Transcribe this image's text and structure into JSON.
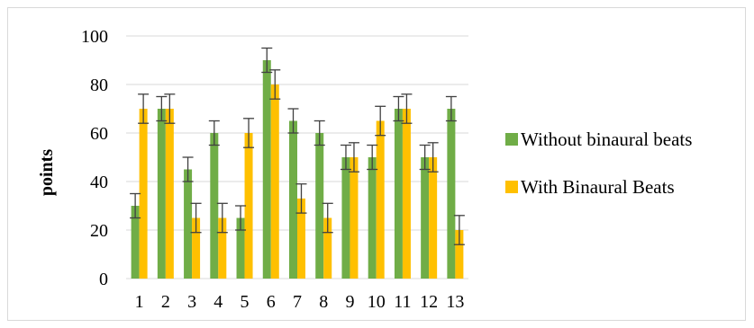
{
  "chart_data": {
    "type": "bar",
    "categories": [
      "1",
      "2",
      "3",
      "4",
      "5",
      "6",
      "7",
      "8",
      "9",
      "10",
      "11",
      "12",
      "13"
    ],
    "series": [
      {
        "name": "Without binaural beats",
        "color": "#70ad47",
        "values": [
          30,
          70,
          45,
          60,
          25,
          90,
          65,
          60,
          50,
          50,
          70,
          50,
          70
        ],
        "error": [
          5,
          5,
          5,
          5,
          5,
          5,
          5,
          5,
          5,
          5,
          5,
          5,
          5
        ]
      },
      {
        "name": "With Binaural Beats",
        "color": "#ffc000",
        "values": [
          70,
          70,
          25,
          25,
          60,
          80,
          33,
          25,
          50,
          65,
          70,
          50,
          20
        ],
        "error": [
          6,
          6,
          6,
          6,
          6,
          6,
          6,
          6,
          6,
          6,
          6,
          6,
          6
        ]
      }
    ],
    "ylabel": "points",
    "xlabel": "",
    "ylim": [
      0,
      100
    ],
    "yticks": [
      0,
      20,
      40,
      60,
      80,
      100
    ],
    "grid": true,
    "legend": "right",
    "gridline_color": "#d9d9d9"
  }
}
